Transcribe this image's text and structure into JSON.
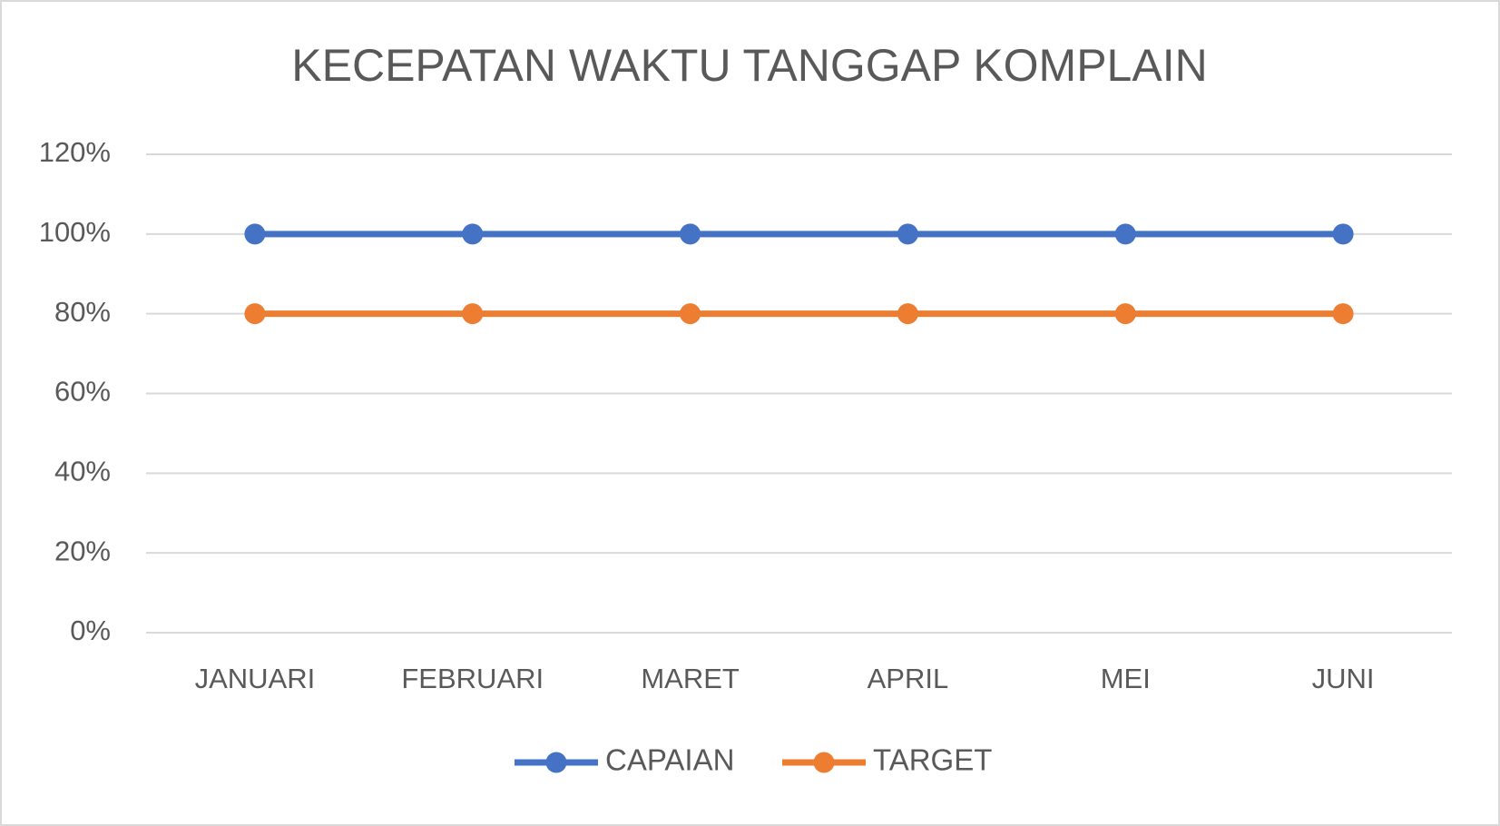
{
  "chart_data": {
    "type": "line",
    "title": "KECEPATAN WAKTU TANGGAP KOMPLAIN",
    "categories": [
      "JANUARI",
      "FEBRUARI",
      "MARET",
      "APRIL",
      "MEI",
      "JUNI"
    ],
    "series": [
      {
        "name": "CAPAIAN",
        "color": "#4472c4",
        "values": [
          100,
          100,
          100,
          100,
          100,
          100
        ]
      },
      {
        "name": "TARGET",
        "color": "#ed7d31",
        "values": [
          80,
          80,
          80,
          80,
          80,
          80
        ]
      }
    ],
    "ylim": [
      0,
      120
    ],
    "yticks": [
      {
        "value": 0,
        "label": "0%"
      },
      {
        "value": 20,
        "label": "20%"
      },
      {
        "value": 40,
        "label": "40%"
      },
      {
        "value": 60,
        "label": "60%"
      },
      {
        "value": 80,
        "label": "80%"
      },
      {
        "value": 100,
        "label": "100%"
      },
      {
        "value": 120,
        "label": "120%"
      }
    ],
    "grid": true,
    "legend": "bottom"
  }
}
